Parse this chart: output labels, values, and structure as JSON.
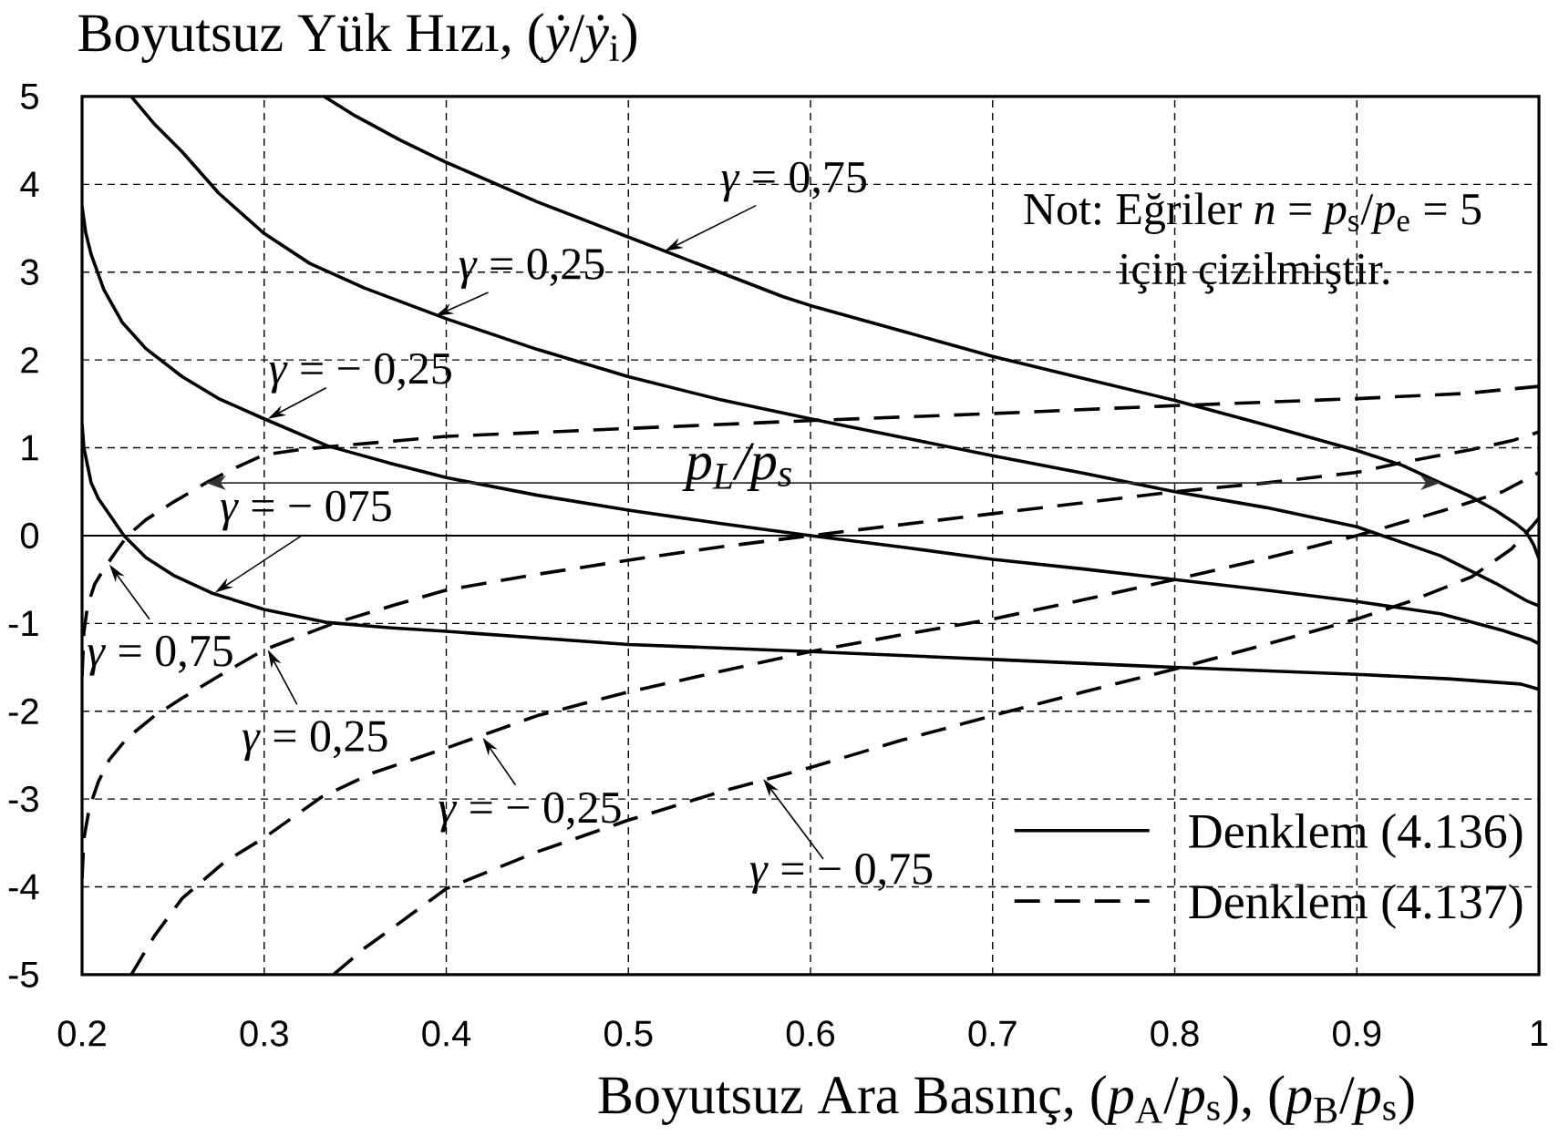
{
  "chart_data": {
    "type": "line",
    "ylabel": "Boyutsuz Yük Hızı, (*ẏ*/*ẏ*$_{i}$)",
    "xlabel": "Boyutsuz Ara Basınç, (*p*$_{A}$/*p*$_{s}$), (*p*$_{B}$/*p*$_{s}$)",
    "xlim": [
      0.2,
      1
    ],
    "ylim": [
      -5,
      5
    ],
    "xticks": [
      0.2,
      0.3,
      0.4,
      0.5,
      0.6,
      0.7,
      0.8,
      0.9,
      1
    ],
    "yticks": [
      -5,
      -4,
      -3,
      -2,
      -1,
      0,
      1,
      2,
      3,
      4,
      5
    ],
    "grid": true,
    "legend": "bottom right",
    "series": [
      {
        "name": "Denklem (4.136)",
        "color": "#000000",
        "line_style": "solid",
        "x": [
          0.333,
          0.35,
          0.375,
          0.4,
          0.45,
          0.5,
          0.52,
          0.55,
          0.585,
          0.6,
          0.65,
          0.7,
          0.75,
          0.8,
          0.85,
          0.9,
          0.925,
          0.946,
          0.962,
          0.976,
          0.987,
          0.993,
          0.997,
          1.0
        ],
        "values": [
          5.0,
          4.78,
          4.5,
          4.25,
          3.8,
          3.4,
          3.24,
          3.0,
          2.72,
          2.62,
          2.33,
          2.04,
          1.79,
          1.54,
          1.26,
          0.97,
          0.8,
          0.6,
          0.45,
          0.29,
          0.14,
          0.04,
          -0.1,
          -0.26
        ]
      },
      {
        "color": "#000000",
        "line_style": "solid",
        "x": [
          0.227,
          0.24,
          0.255,
          0.275,
          0.3,
          0.325,
          0.355,
          0.4,
          0.45,
          0.5,
          0.55,
          0.6,
          0.65,
          0.7,
          0.75,
          0.8,
          0.85,
          0.9,
          0.946,
          0.976,
          0.993,
          1.0
        ],
        "values": [
          5.0,
          4.68,
          4.37,
          3.9,
          3.44,
          3.1,
          2.82,
          2.47,
          2.12,
          1.81,
          1.55,
          1.33,
          1.12,
          0.91,
          0.71,
          0.5,
          0.32,
          0.1,
          -0.23,
          -0.54,
          -0.74,
          -0.8
        ]
      },
      {
        "color": "#000000",
        "line_style": "solid",
        "x": [
          0.2,
          0.202,
          0.205,
          0.212,
          0.222,
          0.235,
          0.255,
          0.275,
          0.3,
          0.335,
          0.37,
          0.4,
          0.45,
          0.5,
          0.55,
          0.6,
          0.65,
          0.7,
          0.75,
          0.8,
          0.85,
          0.9,
          0.946,
          0.98,
          0.995,
          1.0
        ],
        "values": [
          3.75,
          3.45,
          3.2,
          2.8,
          2.43,
          2.13,
          1.81,
          1.56,
          1.33,
          1.02,
          0.82,
          0.66,
          0.46,
          0.29,
          0.14,
          0.0,
          -0.13,
          -0.27,
          -0.38,
          -0.5,
          -0.62,
          -0.75,
          -0.89,
          -1.08,
          -1.18,
          -1.23
        ]
      },
      {
        "color": "#000000",
        "line_style": "solid",
        "x": [
          0.2,
          0.201,
          0.203,
          0.205,
          0.209,
          0.215,
          0.223,
          0.235,
          0.25,
          0.272,
          0.3,
          0.335,
          0.37,
          0.4,
          0.5,
          0.6,
          0.7,
          0.8,
          0.9,
          0.95,
          0.99,
          1.0
        ],
        "values": [
          1.27,
          1.0,
          0.8,
          0.6,
          0.42,
          0.24,
          0.0,
          -0.25,
          -0.45,
          -0.66,
          -0.84,
          -0.99,
          -1.05,
          -1.09,
          -1.24,
          -1.32,
          -1.41,
          -1.5,
          -1.58,
          -1.63,
          -1.69,
          -1.75
        ]
      },
      {
        "name": "Denklem (4.137)",
        "color": "#000000",
        "line_style": "dashed",
        "x": [
          0.2,
          0.201,
          0.203,
          0.207,
          0.212,
          0.218,
          0.225,
          0.235,
          0.25,
          0.268,
          0.285,
          0.3,
          0.32,
          0.34,
          0.4,
          0.5,
          0.6,
          0.7,
          0.8,
          0.9,
          0.96,
          1.0
        ],
        "values": [
          -1.6,
          -1.1,
          -0.8,
          -0.55,
          -0.38,
          -0.2,
          0.0,
          0.18,
          0.38,
          0.6,
          0.78,
          0.92,
          0.98,
          1.02,
          1.13,
          1.22,
          1.31,
          1.39,
          1.48,
          1.56,
          1.62,
          1.7
        ]
      },
      {
        "color": "#000000",
        "line_style": "dashed",
        "x": [
          0.2,
          0.201,
          0.204,
          0.209,
          0.215,
          0.225,
          0.24,
          0.255,
          0.275,
          0.3,
          0.338,
          0.37,
          0.4,
          0.45,
          0.5,
          0.55,
          0.6,
          0.7,
          0.8,
          0.85,
          0.9,
          0.929,
          0.963,
          0.985,
          1.0
        ],
        "values": [
          -3.9,
          -3.45,
          -3.1,
          -2.8,
          -2.55,
          -2.3,
          -2.05,
          -1.85,
          -1.6,
          -1.3,
          -1.0,
          -0.8,
          -0.62,
          -0.44,
          -0.28,
          -0.13,
          0.0,
          0.25,
          0.5,
          0.6,
          0.72,
          0.85,
          0.98,
          1.08,
          1.18
        ]
      },
      {
        "color": "#000000",
        "line_style": "dashed",
        "x": [
          0.227,
          0.24,
          0.255,
          0.278,
          0.3,
          0.332,
          0.36,
          0.4,
          0.45,
          0.5,
          0.55,
          0.6,
          0.65,
          0.7,
          0.75,
          0.8,
          0.85,
          0.9,
          0.95,
          0.98,
          1.0
        ],
        "values": [
          -5.0,
          -4.55,
          -4.13,
          -3.72,
          -3.44,
          -2.97,
          -2.7,
          -2.42,
          -2.05,
          -1.78,
          -1.55,
          -1.32,
          -1.13,
          -0.95,
          -0.73,
          -0.5,
          -0.26,
          0.0,
          0.3,
          0.5,
          0.72
        ]
      },
      {
        "color": "#000000",
        "line_style": "dashed",
        "x": [
          0.338,
          0.355,
          0.375,
          0.4,
          0.45,
          0.5,
          0.55,
          0.6,
          0.65,
          0.7,
          0.75,
          0.8,
          0.85,
          0.9,
          0.929,
          0.963,
          0.985,
          0.996,
          1.0
        ],
        "values": [
          -5.0,
          -4.7,
          -4.4,
          -4.02,
          -3.6,
          -3.24,
          -2.92,
          -2.64,
          -2.33,
          -2.05,
          -1.78,
          -1.52,
          -1.24,
          -0.95,
          -0.75,
          -0.47,
          -0.15,
          0.1,
          0.2
        ]
      },
      {
        "name": "p$_{L}$/p$_{s}$",
        "color": "#333333",
        "line_style": "solid",
        "x": [
          0.268,
          0.946
        ],
        "values": [
          0.6,
          0.6
        ]
      }
    ],
    "ref_lines": [
      {
        "axis": "y",
        "value": 0
      }
    ],
    "annotations": [
      {
        "text": "*γ* = 0,75",
        "x": 0.52,
        "y": 3.24
      },
      {
        "text": "*γ* = 0,25",
        "x": 0.394,
        "y": 2.5
      },
      {
        "text": "*γ* = − 0,25",
        "x": 0.302,
        "y": 1.33
      },
      {
        "text": "*γ* = − 075",
        "x": 0.273,
        "y": -0.65
      },
      {
        "text": "*γ* = 0,75",
        "x": 0.215,
        "y": -0.33
      },
      {
        "text": "*γ* = 0,25",
        "x": 0.302,
        "y": -1.3
      },
      {
        "text": "*γ* = − 0,25",
        "x": 0.42,
        "y": -2.3
      },
      {
        "text": "*γ* = − 0,75",
        "x": 0.574,
        "y": -2.77
      },
      "Not: Eğriler *n* = *p*$_{s}$/*p*$_{e}$ = 5",
      "için çizilmiştir."
    ]
  }
}
